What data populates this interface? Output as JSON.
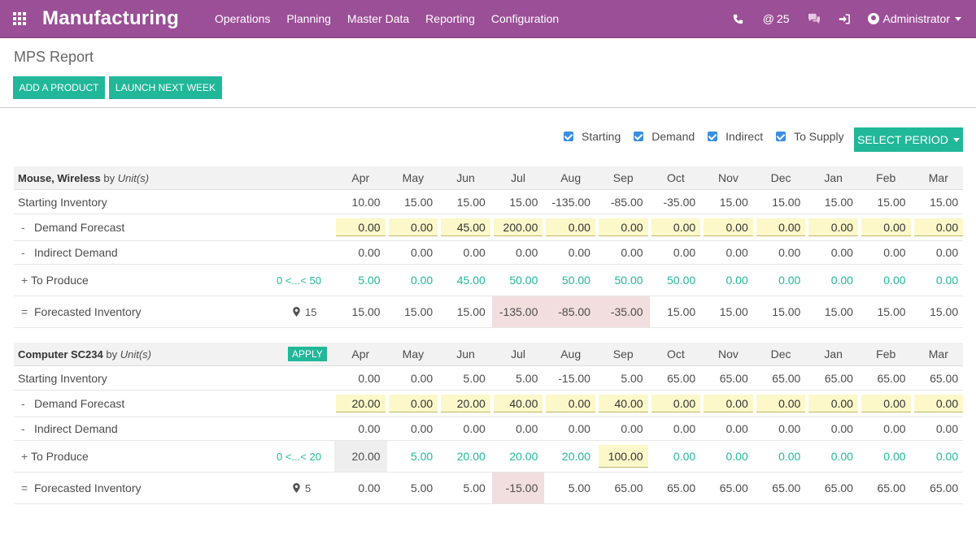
{
  "header": {
    "brand": "Manufacturing",
    "menu": [
      "Operations",
      "Planning",
      "Master Data",
      "Reporting",
      "Configuration"
    ],
    "mentions_count": "25",
    "user": "Administrator"
  },
  "page": {
    "title": "MPS Report",
    "add_product_label": "ADD A PRODUCT",
    "launch_next_week_label": "LAUNCH NEXT WEEK",
    "select_period_label": "SELECT PERIOD"
  },
  "filters": [
    {
      "label": "Starting",
      "checked": true
    },
    {
      "label": "Demand",
      "checked": true
    },
    {
      "label": "Indirect",
      "checked": true
    },
    {
      "label": "To Supply",
      "checked": true
    }
  ],
  "months": [
    "Apr",
    "May",
    "Jun",
    "Jul",
    "Aug",
    "Sep",
    "Oct",
    "Nov",
    "Dec",
    "Jan",
    "Feb",
    "Mar"
  ],
  "products": [
    {
      "name": "Mouse, Wireless",
      "by": "by",
      "uom": "Unit(s)",
      "apply_label": "",
      "range": "0 <...< 50",
      "safety_stock": "15",
      "starting_label": "Starting Inventory",
      "demand_label": "Demand Forecast",
      "indirect_label": "Indirect Demand",
      "produce_label": "To Produce",
      "forecast_label": "Forecasted Inventory",
      "starting": [
        "10.00",
        "15.00",
        "15.00",
        "15.00",
        "-135.00",
        "-85.00",
        "-35.00",
        "15.00",
        "15.00",
        "15.00",
        "15.00",
        "15.00"
      ],
      "demand": [
        "0.00",
        "0.00",
        "45.00",
        "200.00",
        "0.00",
        "0.00",
        "0.00",
        "0.00",
        "0.00",
        "0.00",
        "0.00",
        "0.00"
      ],
      "indirect": [
        "0.00",
        "0.00",
        "0.00",
        "0.00",
        "0.00",
        "0.00",
        "0.00",
        "0.00",
        "0.00",
        "0.00",
        "0.00",
        "0.00"
      ],
      "produce": [
        "5.00",
        "0.00",
        "45.00",
        "50.00",
        "50.00",
        "50.00",
        "50.00",
        "0.00",
        "0.00",
        "0.00",
        "0.00",
        "0.00"
      ],
      "forecast": [
        "15.00",
        "15.00",
        "15.00",
        "-135.00",
        "-85.00",
        "-35.00",
        "15.00",
        "15.00",
        "15.00",
        "15.00",
        "15.00",
        "15.00"
      ]
    },
    {
      "name": "Computer SC234",
      "by": "by",
      "uom": "Unit(s)",
      "apply_label": "APPLY",
      "range": "0 <...< 20",
      "safety_stock": "5",
      "starting_label": "Starting Inventory",
      "demand_label": "Demand Forecast",
      "indirect_label": "Indirect Demand",
      "produce_label": "To Produce",
      "forecast_label": "Forecasted Inventory",
      "starting": [
        "0.00",
        "0.00",
        "5.00",
        "5.00",
        "-15.00",
        "5.00",
        "65.00",
        "65.00",
        "65.00",
        "65.00",
        "65.00",
        "65.00"
      ],
      "demand": [
        "20.00",
        "0.00",
        "20.00",
        "40.00",
        "0.00",
        "40.00",
        "0.00",
        "0.00",
        "0.00",
        "0.00",
        "0.00",
        "0.00"
      ],
      "indirect": [
        "0.00",
        "0.00",
        "0.00",
        "0.00",
        "0.00",
        "0.00",
        "0.00",
        "0.00",
        "0.00",
        "0.00",
        "0.00",
        "0.00"
      ],
      "produce": [
        "20.00",
        "5.00",
        "20.00",
        "20.00",
        "20.00",
        "100.00",
        "0.00",
        "0.00",
        "0.00",
        "0.00",
        "0.00",
        "0.00"
      ],
      "forecast": [
        "0.00",
        "5.00",
        "5.00",
        "-15.00",
        "5.00",
        "65.00",
        "65.00",
        "65.00",
        "65.00",
        "65.00",
        "65.00",
        "65.00"
      ]
    }
  ]
}
